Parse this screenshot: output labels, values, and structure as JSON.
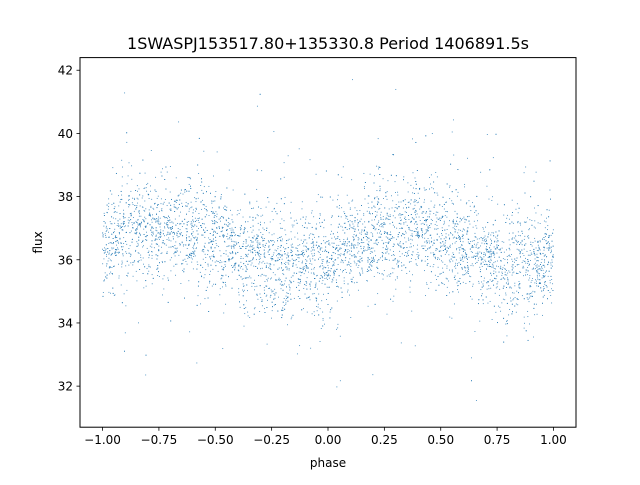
{
  "chart_data": {
    "type": "scatter",
    "title": "1SWASPJ153517.80+135330.8 Period 1406891.5s",
    "xlabel": "phase",
    "ylabel": "flux",
    "xlim": [
      -1.1,
      1.1
    ],
    "ylim": [
      30.7,
      42.4
    ],
    "xticks": [
      -1.0,
      -0.75,
      -0.5,
      -0.25,
      0.0,
      0.25,
      0.5,
      0.75,
      1.0
    ],
    "xtick_labels": [
      "−1.00",
      "−0.75",
      "−0.50",
      "−0.25",
      "0.00",
      "0.25",
      "0.50",
      "0.75",
      "1.00"
    ],
    "yticks": [
      32,
      34,
      36,
      38,
      40,
      42
    ],
    "ytick_labels": [
      "32",
      "34",
      "36",
      "38",
      "40",
      "42"
    ],
    "grid": false,
    "legend": "none",
    "marker_color": "#1f77b4",
    "series": [
      {
        "x_range": [
          -1.0,
          1.0
        ],
        "approx_profile": [
          {
            "x": -1.0,
            "y": 36.3
          },
          {
            "x": -0.9,
            "y": 36.8
          },
          {
            "x": -0.75,
            "y": 37.0
          },
          {
            "x": -0.6,
            "y": 36.9
          },
          {
            "x": -0.5,
            "y": 36.7
          },
          {
            "x": -0.4,
            "y": 36.2
          },
          {
            "x": -0.25,
            "y": 35.9
          },
          {
            "x": -0.1,
            "y": 35.9
          },
          {
            "x": 0.0,
            "y": 36.0
          },
          {
            "x": 0.1,
            "y": 36.4
          },
          {
            "x": 0.25,
            "y": 36.8
          },
          {
            "x": 0.4,
            "y": 37.0
          },
          {
            "x": 0.5,
            "y": 36.8
          },
          {
            "x": 0.6,
            "y": 36.4
          },
          {
            "x": 0.75,
            "y": 35.9
          },
          {
            "x": 0.9,
            "y": 35.8
          },
          {
            "x": 1.0,
            "y": 36.0
          }
        ],
        "typical_spread": 1.4,
        "y_min": 31.2,
        "y_max": 41.8
      }
    ]
  }
}
